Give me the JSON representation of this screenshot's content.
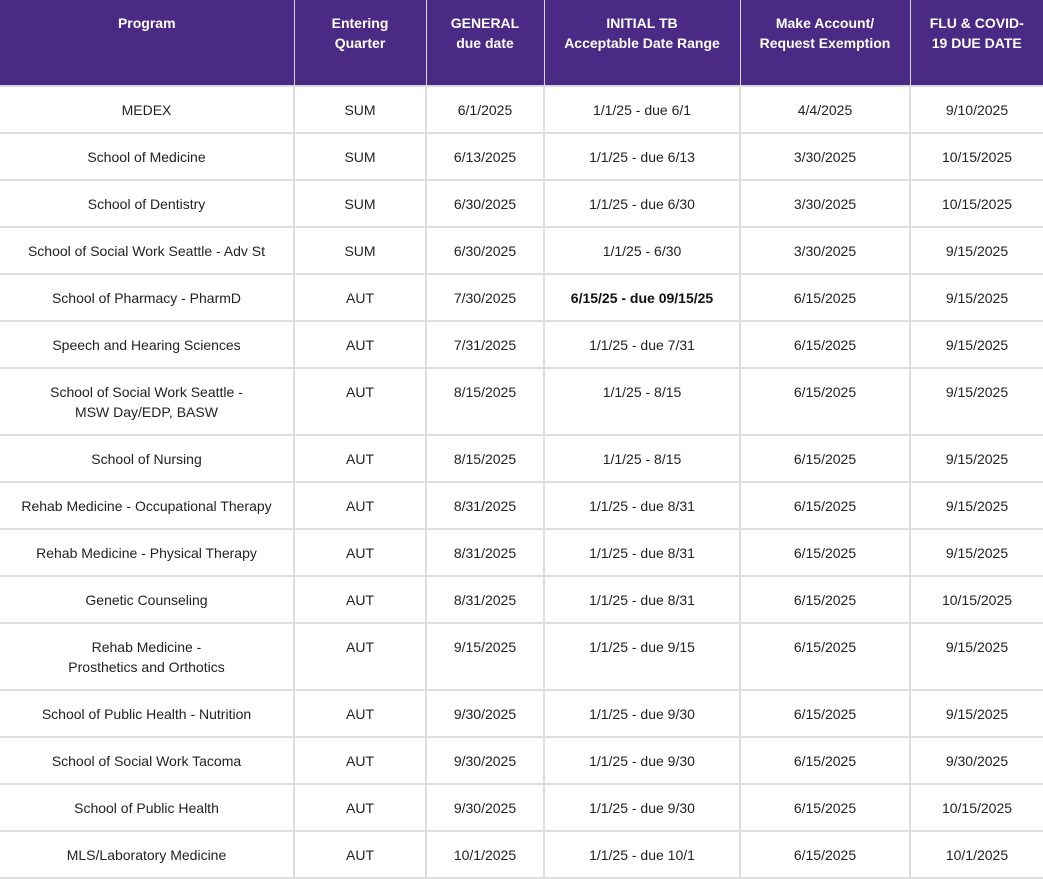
{
  "header": {
    "program": [
      "Program"
    ],
    "quarter": [
      "Entering",
      "Quarter"
    ],
    "general": [
      "GENERAL",
      "due date"
    ],
    "tb": [
      "INITIAL TB",
      "Acceptable Date Range"
    ],
    "account": [
      "Make Account/",
      "Request Exemption"
    ],
    "flu": [
      "FLU & COVID-",
      "19 DUE DATE"
    ]
  },
  "rows": [
    {
      "program": [
        "MEDEX"
      ],
      "quarter": "SUM",
      "general": "6/1/2025",
      "tb": "1/1/25 - due 6/1",
      "tb_bold": false,
      "account": "4/4/2025",
      "flu": "9/10/2025"
    },
    {
      "program": [
        "School of Medicine"
      ],
      "quarter": "SUM",
      "general": "6/13/2025",
      "tb": "1/1/25 - due 6/13",
      "tb_bold": false,
      "account": "3/30/2025",
      "flu": "10/15/2025"
    },
    {
      "program": [
        "School of Dentistry"
      ],
      "quarter": "SUM",
      "general": "6/30/2025",
      "tb": "1/1/25 - due 6/30",
      "tb_bold": false,
      "account": "3/30/2025",
      "flu": "10/15/2025"
    },
    {
      "program": [
        "School of Social Work Seattle - Adv St"
      ],
      "quarter": "SUM",
      "general": "6/30/2025",
      "tb": "1/1/25 - 6/30",
      "tb_bold": false,
      "account": "3/30/2025",
      "flu": "9/15/2025"
    },
    {
      "program": [
        "School of Pharmacy - PharmD"
      ],
      "quarter": "AUT",
      "general": "7/30/2025",
      "tb": "6/15/25 - due 09/15/25",
      "tb_bold": true,
      "account": "6/15/2025",
      "flu": "9/15/2025"
    },
    {
      "program": [
        "Speech and Hearing Sciences"
      ],
      "quarter": "AUT",
      "general": "7/31/2025",
      "tb": "1/1/25 - due 7/31",
      "tb_bold": false,
      "account": "6/15/2025",
      "flu": "9/15/2025"
    },
    {
      "program": [
        "School of Social Work Seattle -",
        "MSW Day/EDP, BASW"
      ],
      "quarter": "AUT",
      "general": "8/15/2025",
      "tb": "1/1/25 - 8/15",
      "tb_bold": false,
      "account": "6/15/2025",
      "flu": "9/15/2025"
    },
    {
      "program": [
        "School of Nursing"
      ],
      "quarter": "AUT",
      "general": "8/15/2025",
      "tb": "1/1/25 - 8/15",
      "tb_bold": false,
      "account": "6/15/2025",
      "flu": "9/15/2025"
    },
    {
      "program": [
        "Rehab Medicine - Occupational Therapy"
      ],
      "quarter": "AUT",
      "general": "8/31/2025",
      "tb": "1/1/25 - due 8/31",
      "tb_bold": false,
      "account": "6/15/2025",
      "flu": "9/15/2025"
    },
    {
      "program": [
        "Rehab Medicine - Physical Therapy"
      ],
      "quarter": "AUT",
      "general": "8/31/2025",
      "tb": "1/1/25 - due 8/31",
      "tb_bold": false,
      "account": "6/15/2025",
      "flu": "9/15/2025"
    },
    {
      "program": [
        "Genetic Counseling"
      ],
      "quarter": "AUT",
      "general": "8/31/2025",
      "tb": "1/1/25 - due 8/31",
      "tb_bold": false,
      "account": "6/15/2025",
      "flu": "10/15/2025"
    },
    {
      "program": [
        "Rehab Medicine -",
        "Prosthetics and Orthotics"
      ],
      "quarter": "AUT",
      "general": "9/15/2025",
      "tb": "1/1/25 - due 9/15",
      "tb_bold": false,
      "account": "6/15/2025",
      "flu": "9/15/2025"
    },
    {
      "program": [
        "School of Public Health - Nutrition"
      ],
      "quarter": "AUT",
      "general": "9/30/2025",
      "tb": "1/1/25 - due 9/30",
      "tb_bold": false,
      "account": "6/15/2025",
      "flu": "9/15/2025"
    },
    {
      "program": [
        "School of Social Work Tacoma"
      ],
      "quarter": "AUT",
      "general": "9/30/2025",
      "tb": "1/1/25 - due 9/30",
      "tb_bold": false,
      "account": "6/15/2025",
      "flu": "9/30/2025"
    },
    {
      "program": [
        "School of Public Health"
      ],
      "quarter": "AUT",
      "general": "9/30/2025",
      "tb": "1/1/25 - due 9/30",
      "tb_bold": false,
      "account": "6/15/2025",
      "flu": "10/15/2025"
    },
    {
      "program": [
        "MLS/Laboratory Medicine"
      ],
      "quarter": "AUT",
      "general": "10/1/2025",
      "tb": "1/1/25 - due 10/1",
      "tb_bold": false,
      "account": "6/15/2025",
      "flu": "10/1/2025"
    }
  ],
  "colors": {
    "header_background": "#4b2a85",
    "header_text": "#ffffff",
    "grid_line": "#dedede"
  }
}
